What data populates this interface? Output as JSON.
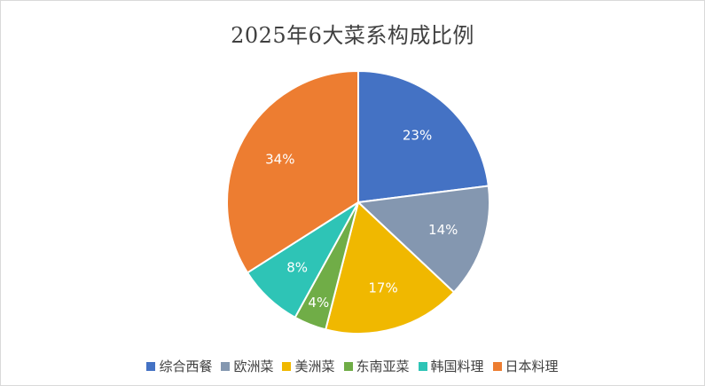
{
  "chart_data": {
    "type": "pie",
    "title": "2025年6大菜系构成比例",
    "categories": [
      "综合西餐",
      "欧洲菜",
      "美洲菜",
      "东南亚菜",
      "韩国料理",
      "日本料理"
    ],
    "values": [
      23,
      14,
      17,
      4,
      8,
      34
    ],
    "labels": [
      "23%",
      "14%",
      "17%",
      "4%",
      "8%",
      "34%"
    ],
    "colors": [
      "#4472c4",
      "#8497b0",
      "#f0b800",
      "#70ad47",
      "#2ec4b6",
      "#ed7d31"
    ],
    "legend": "bottom"
  }
}
